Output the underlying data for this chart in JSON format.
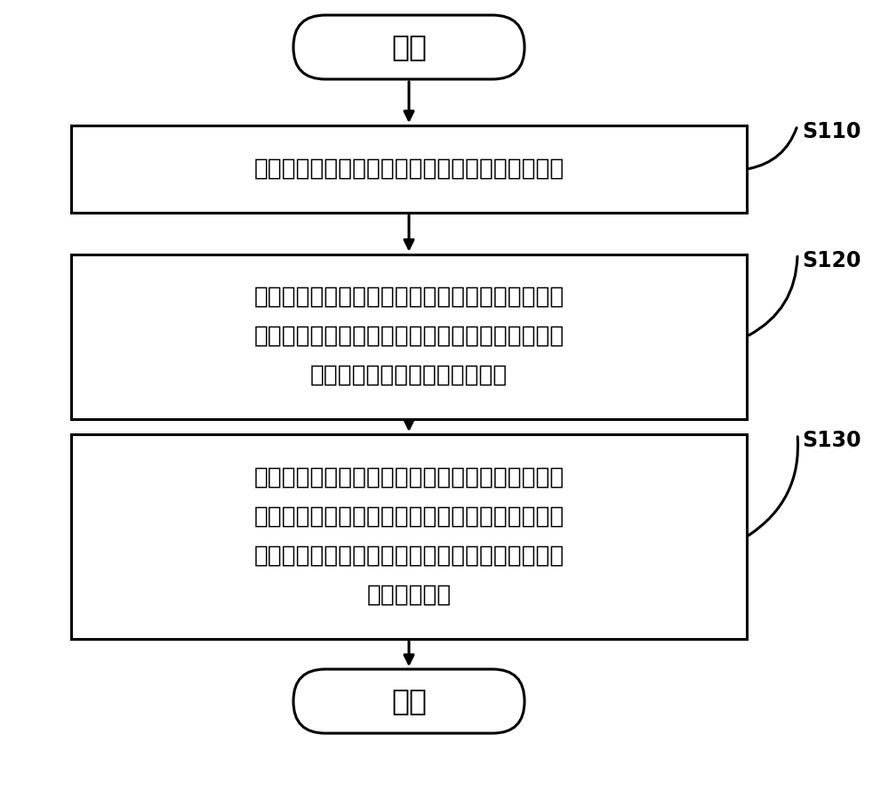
{
  "background_color": "#ffffff",
  "fig_width": 10.0,
  "fig_height": 9.08,
  "start_label": "开始",
  "end_label": "结束",
  "box1_text": "获取本风力发电机组的当前上风侧的风速变化数据",
  "box2_lines": [
    "根据本风力发电机组测得的风速数据与当前上风侧",
    "的风速变化数据确定本风力发电机组的风速变化是",
    "否与当前上风侧的风速变化匹配"
  ],
  "box3_lines": [
    "如果本风力发电机组的风速变化与当前上风侧的风",
    "速变化匹配，且当前的转速在预定转速范围内，则",
    "根据当前上风侧的风速变化数据对本风力发电机组",
    "进行变桨控制"
  ],
  "step_labels": [
    "S110",
    "S120",
    "S130"
  ],
  "text_color": "#000000",
  "box_edge_color": "#000000",
  "arrow_color": "#000000",
  "font_size_main": 19,
  "font_size_step": 17,
  "font_size_terminal": 24,
  "lw": 2.2
}
